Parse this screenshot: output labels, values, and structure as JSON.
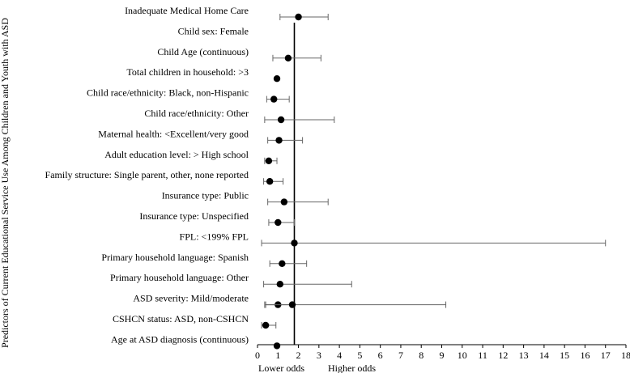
{
  "chart_data": {
    "type": "forest",
    "ylabel": "Predictors of Current Educational Service Use Among Children and Youth with ASD",
    "lower_label": "Lower odds",
    "higher_label": "Higher odds",
    "xlim": [
      0,
      18
    ],
    "xticks": [
      0,
      1,
      2,
      3,
      4,
      5,
      6,
      7,
      8,
      9,
      10,
      11,
      12,
      13,
      14,
      15,
      16,
      17,
      18
    ],
    "reference_value": 1.8,
    "rows": [
      {
        "label": "Inadequate Medical Home Care",
        "points": [
          {
            "or": 2.0,
            "lo": 1.1,
            "hi": 3.45
          }
        ]
      },
      {
        "label": "Child sex: Female",
        "points": [
          {
            "or": null,
            "lo": null,
            "hi": null
          }
        ]
      },
      {
        "label": "Child Age (continuous)",
        "points": [
          {
            "or": 1.5,
            "lo": 0.75,
            "hi": 3.1
          }
        ]
      },
      {
        "label": "Total children in household: >3",
        "points": [
          {
            "or": 0.95,
            "lo": null,
            "hi": null
          }
        ]
      },
      {
        "label": "Child race/ethnicity: Black, non-Hispanic",
        "points": [
          {
            "or": 0.8,
            "lo": 0.45,
            "hi": 1.55
          }
        ]
      },
      {
        "label": "Child race/ethnicity: Other",
        "points": [
          {
            "or": 1.15,
            "lo": 0.35,
            "hi": 3.75
          }
        ]
      },
      {
        "label": "Maternal health: <Excellent/very good",
        "points": [
          {
            "or": 1.05,
            "lo": 0.5,
            "hi": 2.2
          }
        ]
      },
      {
        "label": "Adult education level: > High school",
        "points": [
          {
            "or": 0.55,
            "lo": 0.35,
            "hi": 0.95
          }
        ]
      },
      {
        "label": "Family structure: Single parent, other, none reported",
        "points": [
          {
            "or": 0.6,
            "lo": 0.3,
            "hi": 1.25
          }
        ]
      },
      {
        "label": "Insurance type: Public",
        "points": [
          {
            "or": 1.3,
            "lo": 0.5,
            "hi": 3.45
          }
        ]
      },
      {
        "label": "Insurance type: Unspecified",
        "points": [
          {
            "or": 1.0,
            "lo": 0.55,
            "hi": 1.8
          }
        ]
      },
      {
        "label": "FPL: <199% FPL",
        "points": [
          {
            "or": 1.8,
            "lo": 0.2,
            "hi": 17.0
          }
        ]
      },
      {
        "label": "Primary household language: Spanish",
        "points": [
          {
            "or": 1.2,
            "lo": 0.6,
            "hi": 2.4
          }
        ]
      },
      {
        "label": "Primary household language: Other",
        "points": [
          {
            "or": 1.1,
            "lo": 0.3,
            "hi": 4.6
          }
        ]
      },
      {
        "label": "ASD severity: Mild/moderate",
        "points": [
          {
            "or": 1.0,
            "lo": 0.35,
            "hi": 1.7
          },
          {
            "or": 1.7,
            "lo": 0.4,
            "hi": 9.2
          }
        ]
      },
      {
        "label": "CSHCN status: ASD, non-CSHCN",
        "points": [
          {
            "or": 0.4,
            "lo": 0.2,
            "hi": 0.9
          }
        ]
      },
      {
        "label": "Age at ASD diagnosis (continuous)",
        "points": [
          {
            "or": 0.95,
            "lo": null,
            "hi": null
          }
        ]
      }
    ]
  }
}
